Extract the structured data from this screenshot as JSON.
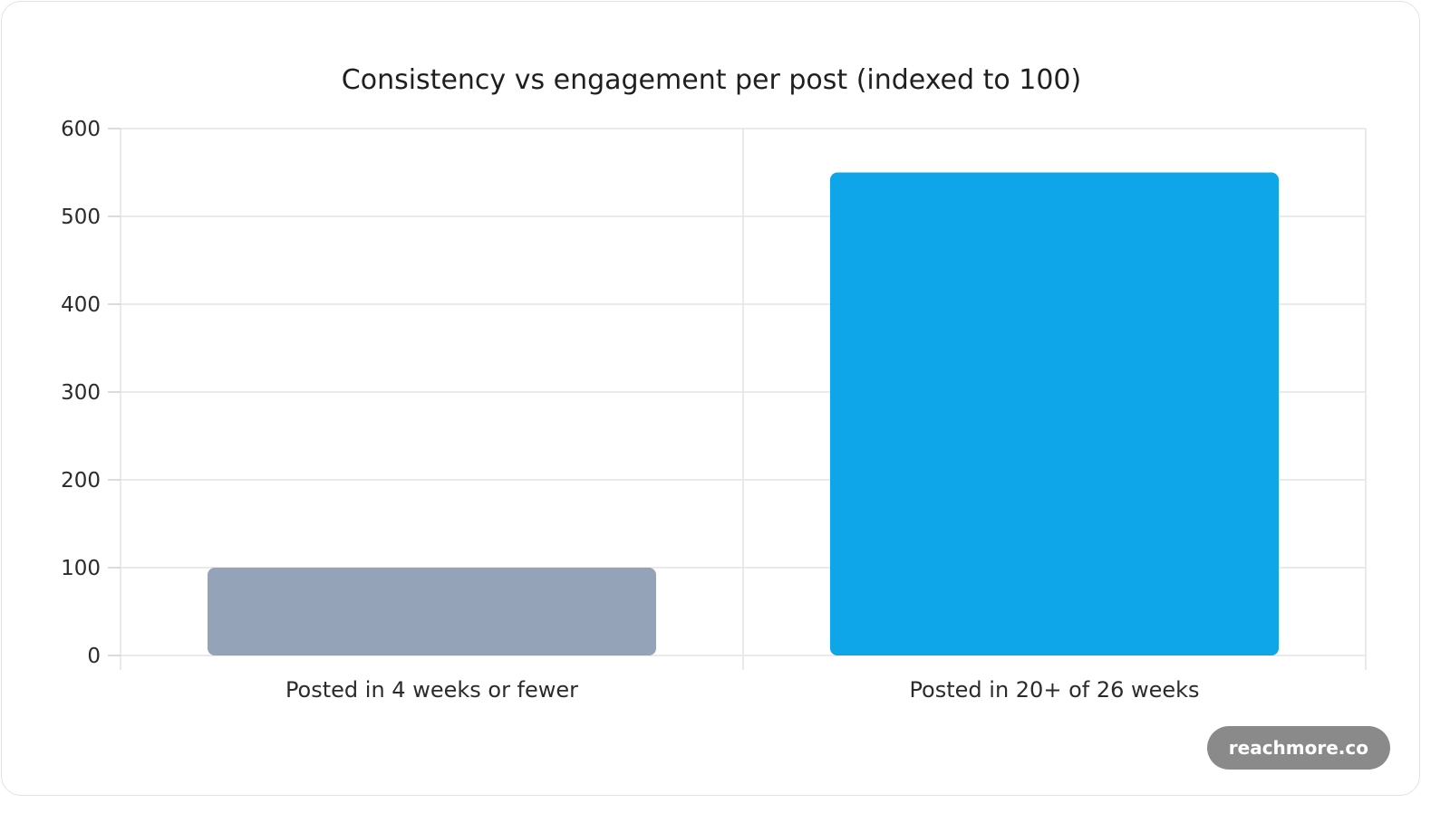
{
  "chart_data": {
    "type": "bar",
    "title": "Consistency vs engagement per post (indexed to 100)",
    "xlabel": "",
    "ylabel": "",
    "categories": [
      "Posted in 4 weeks or fewer",
      "Posted in 20+ of 26 weeks"
    ],
    "values": [
      100,
      550
    ],
    "ylim": [
      0,
      600
    ],
    "yticks": [
      "0",
      "100",
      "200",
      "300",
      "400",
      "500",
      "600"
    ],
    "bar_colors": [
      "#94a3b8",
      "#0ea5e9"
    ],
    "grid": true,
    "legend": "none"
  },
  "watermark": {
    "text": "reachmore.co"
  }
}
